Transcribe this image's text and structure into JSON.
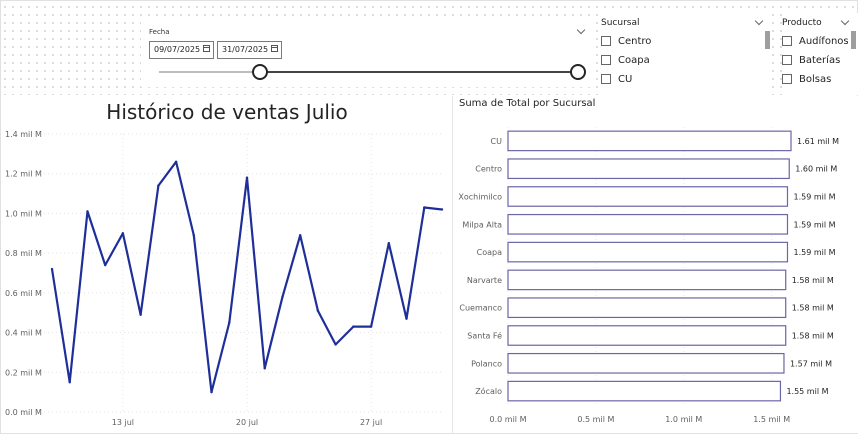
{
  "date_slicer": {
    "label": "Fecha",
    "start_date": "09/07/2025",
    "end_date": "31/07/2025"
  },
  "sucursal_slicer": {
    "title": "Sucursal",
    "items": [
      "Centro",
      "Coapa",
      "CU"
    ]
  },
  "producto_slicer": {
    "title": "Producto",
    "items": [
      "Audífonos",
      "Baterías",
      "Bolsas"
    ]
  },
  "chart_data": [
    {
      "type": "line",
      "title": "Histórico de ventas Julio",
      "x_start_date": "2025-07-09",
      "x_tick_labels": [
        "13 jul",
        "20 jul",
        "27 jul"
      ],
      "x_tick_days": [
        13,
        20,
        27
      ],
      "y_ticks": [
        "0.0 mil M",
        "0.2 mil M",
        "0.4 mil M",
        "0.6 mil M",
        "0.8 mil M",
        "1.0 mil M",
        "1.2 mil M",
        "1.4 mil M"
      ],
      "ylim": [
        0,
        1.4
      ],
      "series": [
        {
          "color": "#1f2f99",
          "x_days": [
            9,
            10,
            11,
            12,
            13,
            14,
            15,
            16,
            17,
            18,
            19,
            20,
            21,
            22,
            23,
            24,
            25,
            26,
            27,
            28,
            29,
            30,
            31
          ],
          "values": [
            0.72,
            0.15,
            1.01,
            0.74,
            0.9,
            0.49,
            1.14,
            1.26,
            0.89,
            0.1,
            0.45,
            1.18,
            0.22,
            0.58,
            0.89,
            0.51,
            0.34,
            0.43,
            0.43,
            0.85,
            0.47,
            1.03,
            1.02
          ]
        }
      ]
    },
    {
      "type": "bar",
      "orientation": "horizontal",
      "title": "Suma de Total por Sucursal",
      "categories": [
        "CU",
        "Centro",
        "Xochimilco",
        "Milpa Alta",
        "Coapa",
        "Narvarte",
        "Cuemanco",
        "Santa Fé",
        "Polanco",
        "Zócalo"
      ],
      "values": [
        1.61,
        1.6,
        1.59,
        1.59,
        1.59,
        1.58,
        1.58,
        1.58,
        1.57,
        1.55
      ],
      "data_labels": [
        "1.61 mil M",
        "1.60 mil M",
        "1.59 mil M",
        "1.59 mil M",
        "1.59 mil M",
        "1.58 mil M",
        "1.58 mil M",
        "1.58 mil M",
        "1.57 mil M",
        "1.55 mil M"
      ],
      "x_ticks": [
        "0.0 mil M",
        "0.5 mil M",
        "1.0 mil M",
        "1.5 mil M"
      ],
      "x_tick_values": [
        0,
        0.5,
        1.0,
        1.5
      ],
      "xlim": [
        0,
        1.61
      ],
      "bar_fill": "#ffffff",
      "bar_stroke": "#6b66a6"
    }
  ]
}
